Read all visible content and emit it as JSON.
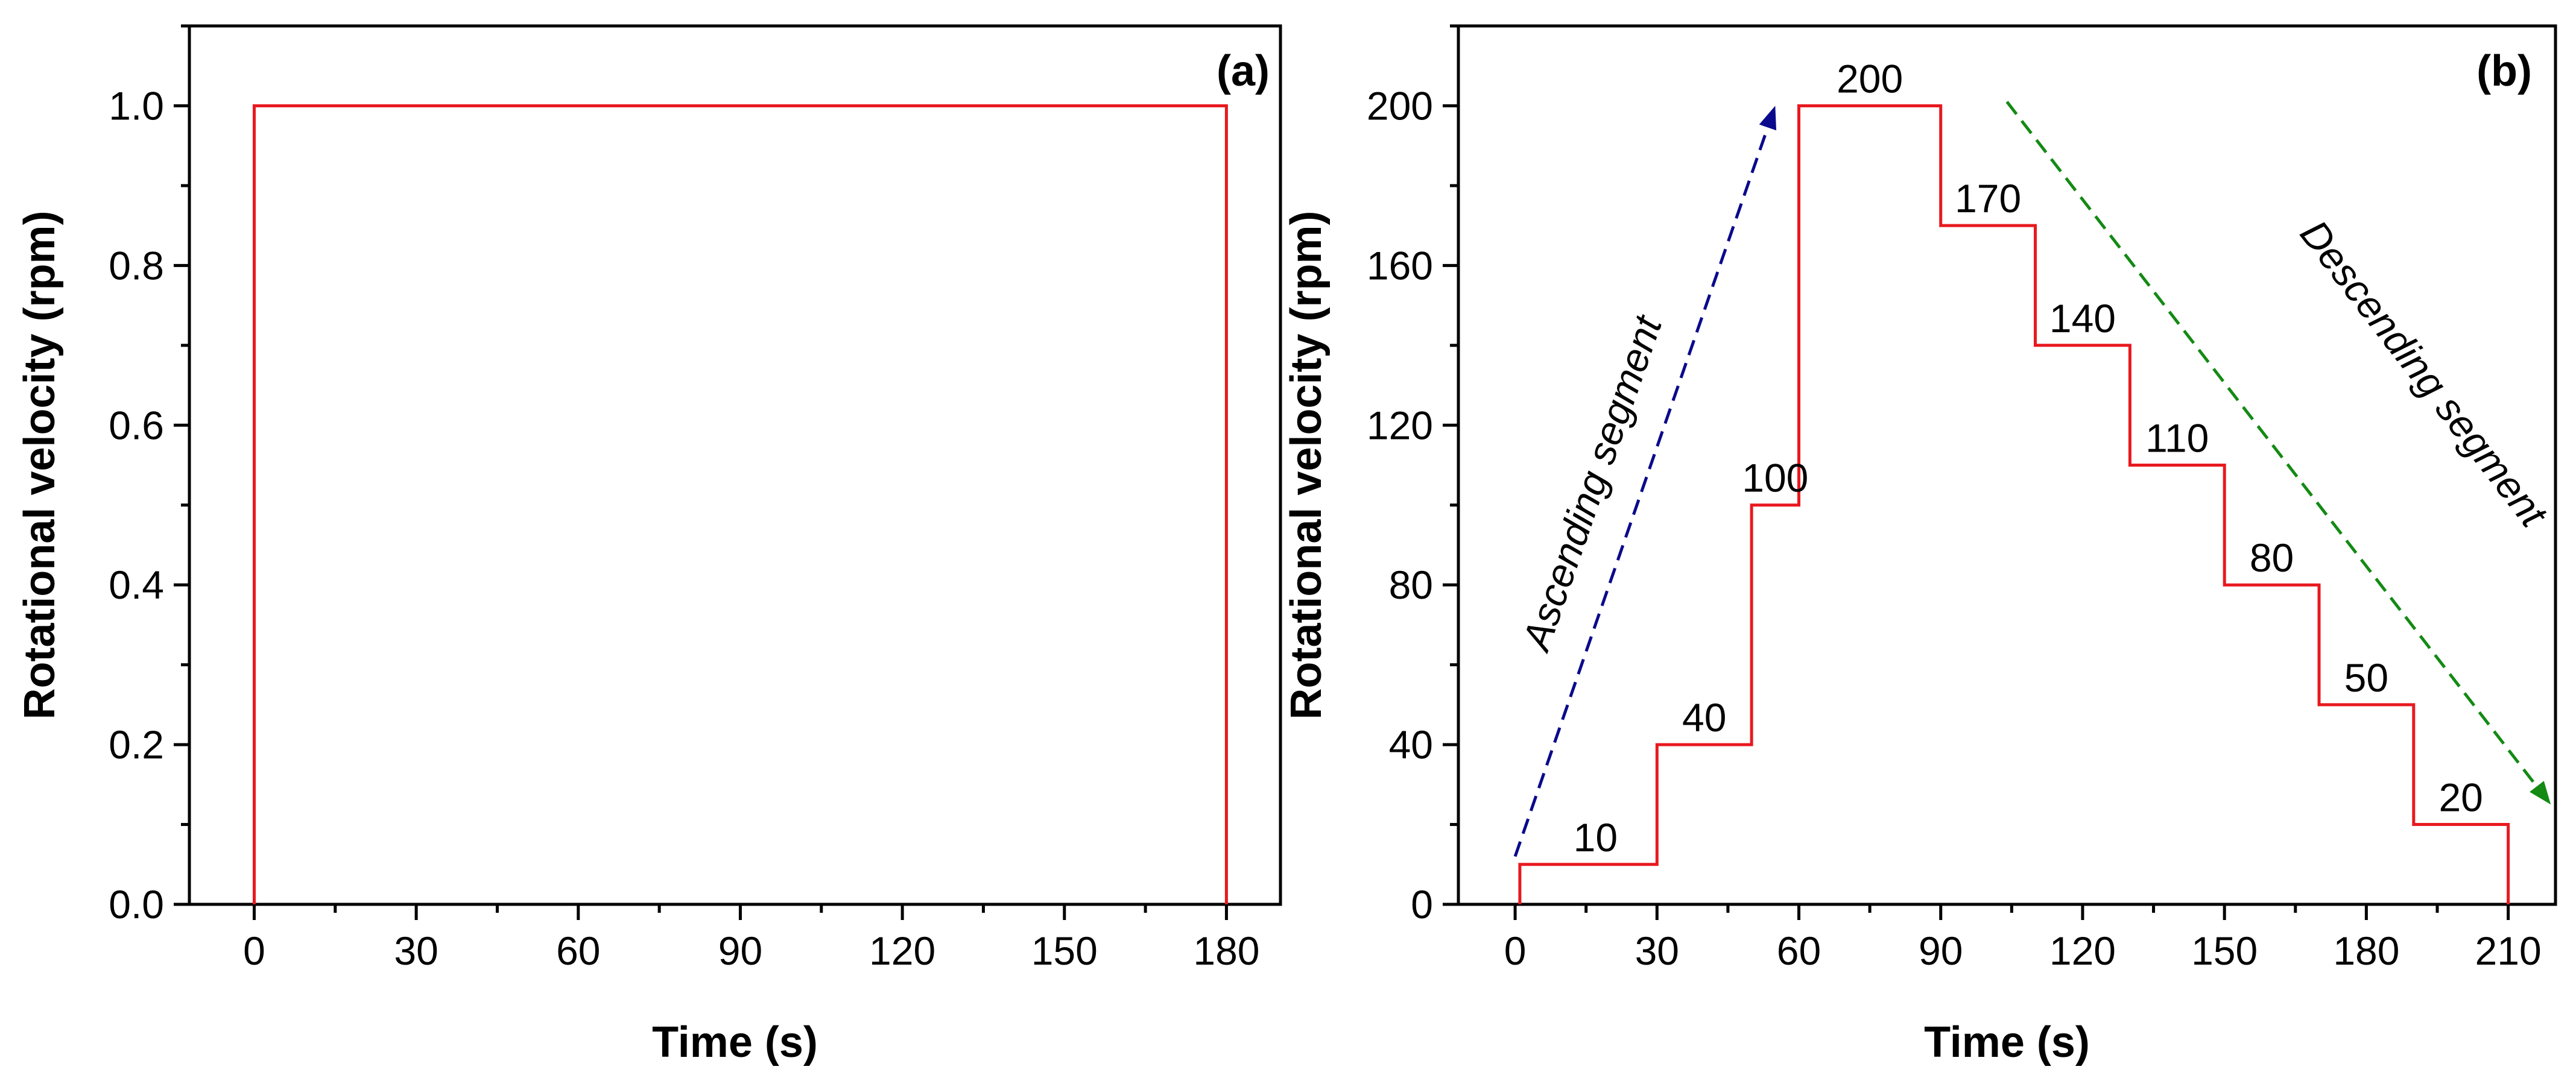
{
  "chart_data": [
    {
      "type": "line",
      "panel_label": "(a)",
      "xlabel": "Time (s)",
      "ylabel": "Rotational velocity (rpm)",
      "xlim": [
        -12,
        190
      ],
      "ylim": [
        0,
        1.1
      ],
      "xticks": [
        0,
        30,
        60,
        90,
        120,
        150,
        180
      ],
      "xtick_labels": [
        "0",
        "30",
        "60",
        "90",
        "120",
        "150",
        "180"
      ],
      "yticks": [
        0.0,
        0.2,
        0.4,
        0.6,
        0.8,
        1.0
      ],
      "ytick_labels": [
        "0.0",
        "0.2",
        "0.4",
        "0.6",
        "0.8",
        "1.0"
      ],
      "series": [
        {
          "color": "#e8191f",
          "x": [
            0,
            0,
            180,
            180
          ],
          "y": [
            0,
            1.0,
            1.0,
            0
          ]
        }
      ]
    },
    {
      "type": "line",
      "panel_label": "(b)",
      "xlabel": "Time (s)",
      "ylabel": "Rotational velocity (rpm)",
      "xlim": [
        -12,
        220
      ],
      "ylim": [
        0,
        220
      ],
      "xticks": [
        0,
        30,
        60,
        90,
        120,
        150,
        180,
        210
      ],
      "xtick_labels": [
        "0",
        "30",
        "60",
        "90",
        "120",
        "150",
        "180",
        "210"
      ],
      "yticks": [
        0,
        40,
        80,
        120,
        160,
        200
      ],
      "ytick_labels": [
        "0",
        "40",
        "80",
        "120",
        "160",
        "200"
      ],
      "series": [
        {
          "color": "#e8191f",
          "x": [
            1,
            1,
            30,
            30,
            50,
            50,
            60,
            60,
            90,
            90,
            110,
            110,
            130,
            130,
            150,
            150,
            170,
            170,
            190,
            190,
            210,
            210
          ],
          "y": [
            0,
            10,
            10,
            40,
            40,
            100,
            100,
            200,
            200,
            170,
            170,
            140,
            140,
            110,
            110,
            80,
            80,
            50,
            50,
            20,
            20,
            0
          ]
        }
      ],
      "step_labels": [
        {
          "text": "10",
          "x": 17,
          "y": 10
        },
        {
          "text": "40",
          "x": 40,
          "y": 40
        },
        {
          "text": "100",
          "x": 55,
          "y": 100
        },
        {
          "text": "200",
          "x": 75,
          "y": 200
        },
        {
          "text": "170",
          "x": 100,
          "y": 170
        },
        {
          "text": "140",
          "x": 120,
          "y": 140
        },
        {
          "text": "110",
          "x": 140,
          "y": 110
        },
        {
          "text": "80",
          "x": 160,
          "y": 80
        },
        {
          "text": "50",
          "x": 180,
          "y": 50
        },
        {
          "text": "20",
          "x": 200,
          "y": 20
        }
      ],
      "annotations": [
        {
          "text": "Ascending segment",
          "color": "#0a0a8c",
          "from": [
            0,
            12
          ],
          "to": [
            55,
            200
          ]
        },
        {
          "text": "Descending segment",
          "color": "#138a13",
          "from": [
            104,
            201
          ],
          "to": [
            219,
            25
          ]
        }
      ]
    }
  ]
}
